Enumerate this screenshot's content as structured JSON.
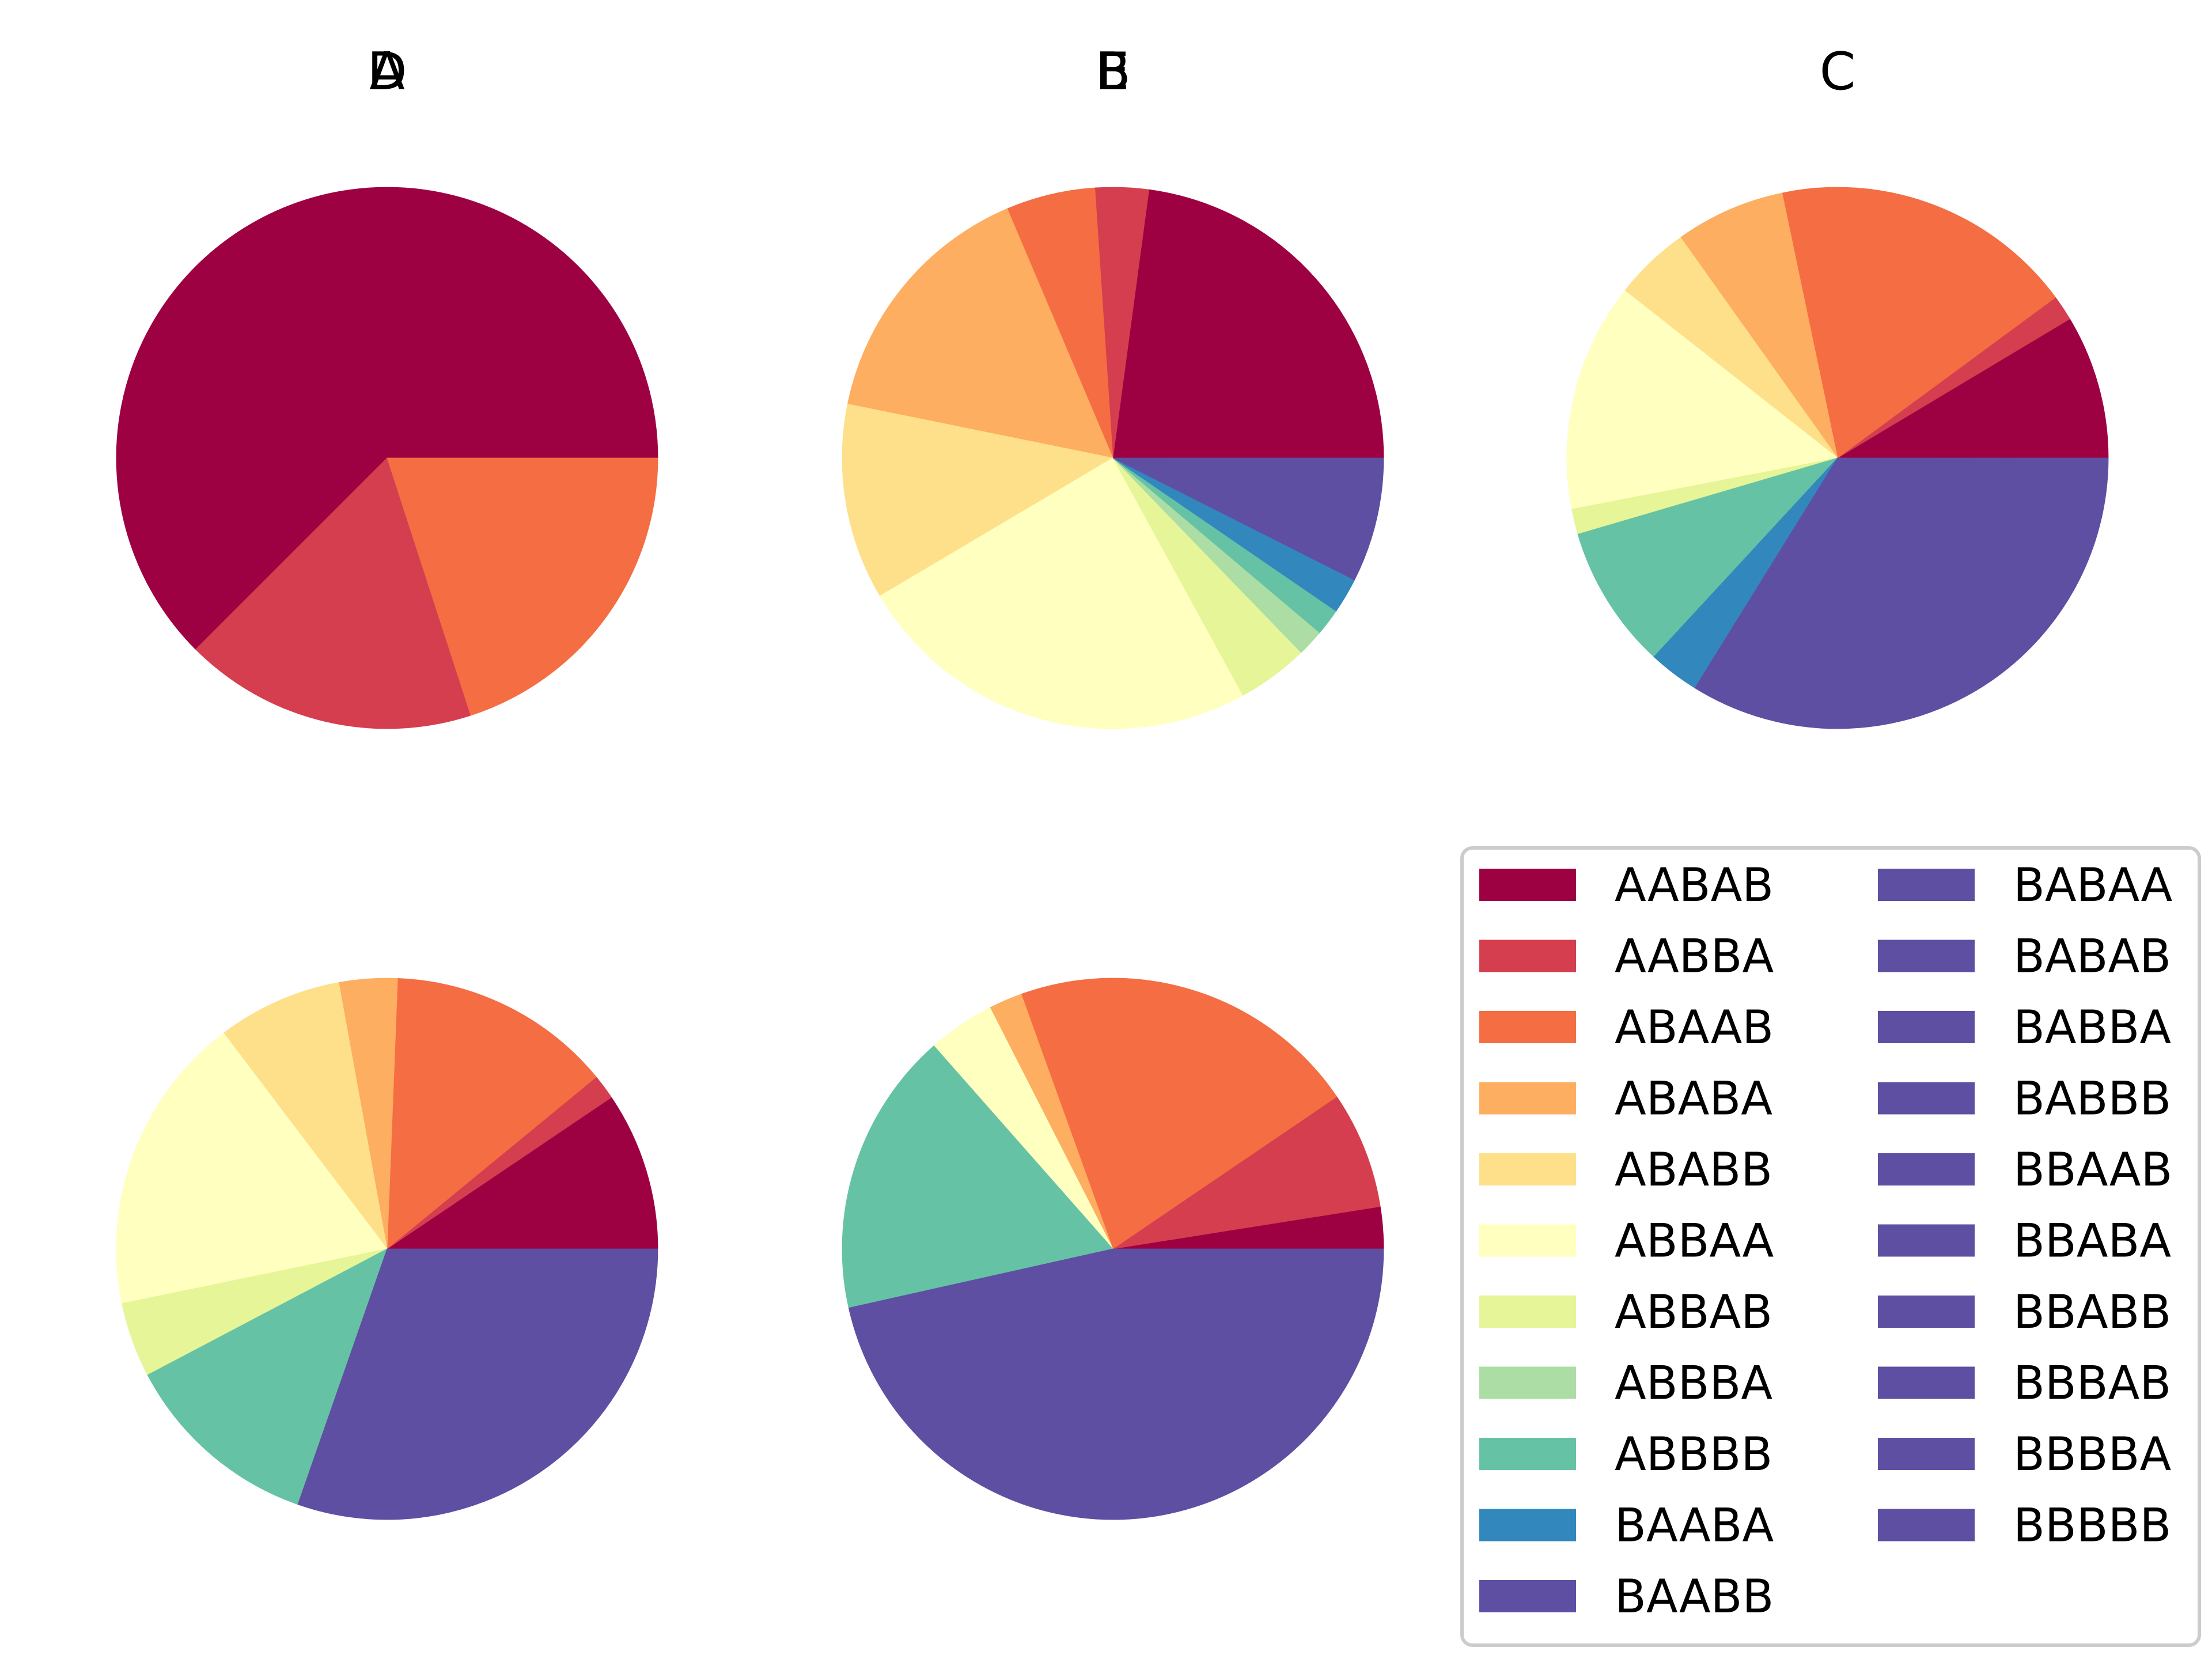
{
  "colors": {
    "AABAB": "#9e0142",
    "AABBA": "#d53e4f",
    "ABAAB": "#f46d43",
    "ABABA": "#fdae61",
    "ABABB": "#fee08b",
    "ABBAA": "#ffffbf",
    "ABBAB": "#e6f598",
    "ABBBA": "#abdda4",
    "ABBBB": "#66c2a5",
    "BAABA": "#3288bd",
    "BAABB": "#5e4fa2",
    "BABAA": "#5e4fa2",
    "BABAB": "#5e4fa2",
    "BABBA": "#5e4fa2",
    "BABBB": "#5e4fa2",
    "BBAAB": "#5e4fa2",
    "BBABA": "#5e4fa2",
    "BBABB": "#5e4fa2",
    "BBBAB": "#5e4fa2",
    "BBBBA": "#5e4fa2",
    "BBBBB": "#5e4fa2"
  },
  "chart_data": [
    {
      "type": "pie",
      "title": "A",
      "labels": [
        "AABAB",
        "AABBA",
        "ABAAB"
      ],
      "values": [
        62.5,
        17.5,
        20.0
      ]
    },
    {
      "type": "pie",
      "title": "B",
      "labels": [
        "AABAB",
        "AABBA",
        "ABAAB",
        "ABABA",
        "ABABB",
        "ABBAA",
        "ABBAB",
        "ABBBA",
        "ABBBB",
        "BAABA",
        "BAABB",
        "BABAA",
        "BABAB"
      ],
      "values": [
        21.5,
        3.0,
        5.0,
        14.5,
        11.0,
        23.0,
        4.0,
        1.5,
        1.5,
        2.0,
        2.5,
        3.0,
        1.5
      ]
    },
    {
      "type": "pie",
      "title": "C",
      "labels": [
        "AABAB",
        "AABBA",
        "ABAAB",
        "ABABA",
        "ABABB",
        "ABBAA",
        "ABBAB",
        "ABBBB",
        "BAABA",
        "BAABB",
        "BABAA",
        "BABAB",
        "BABBA",
        "BABBB",
        "BBAAB",
        "BBABA",
        "BBABB",
        "BBBAB",
        "BBBBA",
        "BBBBB"
      ],
      "values": [
        8.5,
        1.5,
        18.0,
        6.5,
        4.5,
        13.5,
        1.5,
        8.5,
        3.0,
        10.0,
        9.5,
        2.5,
        3.5,
        3.5,
        1.0,
        1.0,
        1.0,
        0.5,
        0.5,
        0.5
      ]
    },
    {
      "type": "pie",
      "title": "D",
      "labels": [
        "AABAB",
        "AABBA",
        "ABAAB",
        "ABABA",
        "ABABB",
        "ABBAA",
        "ABBAB",
        "ABBBB",
        "BAABB",
        "BABAA",
        "BABAB",
        "BABBA",
        "BABBB",
        "BBAAB",
        "BBABA",
        "BBABB",
        "BBBAB",
        "BBBBA",
        "BBBBB"
      ],
      "values": [
        9.5,
        1.5,
        13.5,
        3.5,
        7.5,
        18.0,
        4.5,
        12.0,
        7.0,
        8.5,
        3.0,
        2.5,
        2.0,
        1.5,
        1.0,
        1.0,
        1.0,
        1.0,
        2.0
      ]
    },
    {
      "type": "pie",
      "title": "E",
      "labels": [
        "AABAB",
        "AABBA",
        "ABAAB",
        "ABABA",
        "ABBAA",
        "ABBBB",
        "BAABB",
        "BABAA",
        "BABAB"
      ],
      "values": [
        2.5,
        7.0,
        21.0,
        2.0,
        4.0,
        17.0,
        35.5,
        5.5,
        5.5
      ]
    }
  ],
  "legend": {
    "location": "lower-right",
    "columns": 2,
    "entries": [
      "AABAB",
      "AABBA",
      "ABAAB",
      "ABABA",
      "ABABB",
      "ABBAA",
      "ABBAB",
      "ABBBA",
      "ABBBB",
      "BAABA",
      "BAABB",
      "BABAA",
      "BABAB",
      "BABBA",
      "BABBB",
      "BBAAB",
      "BBABA",
      "BBABB",
      "BBBAB",
      "BBBBA",
      "BBBBB"
    ]
  }
}
